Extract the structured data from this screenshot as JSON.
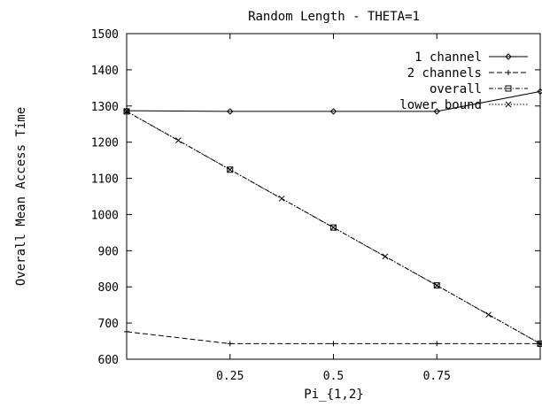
{
  "chart_data": {
    "type": "line",
    "title": "Random Length - THETA=1",
    "xlabel": "Pi_{1,2}",
    "ylabel": "Overall Mean Access Time",
    "xlim": [
      0,
      1
    ],
    "ylim": [
      600,
      1500
    ],
    "x_ticks": [
      0.25,
      0.5,
      0.75
    ],
    "x_tick_labels": [
      "0.25",
      "0.5",
      "0.75"
    ],
    "y_ticks": [
      600,
      700,
      800,
      900,
      1000,
      1100,
      1200,
      1300,
      1400,
      1500
    ],
    "y_tick_labels": [
      "600",
      "700",
      "800",
      "900",
      "1000",
      "1100",
      "1200",
      "1300",
      "1400",
      "1500"
    ],
    "grid": false,
    "legend_position": "top-right",
    "series": [
      {
        "name": "1 channel",
        "marker": "diamond",
        "dash": "solid",
        "x": [
          0,
          0.25,
          0.5,
          0.75,
          1
        ],
        "y": [
          1287,
          1285,
          1285,
          1285,
          1340
        ]
      },
      {
        "name": "2 channels",
        "marker": "plus",
        "dash": "dashed",
        "x": [
          0,
          0.25,
          0.5,
          0.75,
          1
        ],
        "y": [
          676,
          643,
          643,
          643,
          643
        ]
      },
      {
        "name": "overall",
        "marker": "square",
        "dash": "dashdot",
        "x": [
          0,
          0.25,
          0.5,
          0.75,
          1
        ],
        "y": [
          1285,
          1124,
          964,
          804,
          643
        ]
      },
      {
        "name": "lower bound",
        "marker": "cross",
        "dash": "dotted",
        "x": [
          0,
          0.125,
          0.25,
          0.375,
          0.5,
          0.625,
          0.75,
          0.875,
          1
        ],
        "y": [
          1285,
          1205,
          1124,
          1044,
          964,
          884,
          804,
          723,
          643
        ]
      }
    ]
  }
}
